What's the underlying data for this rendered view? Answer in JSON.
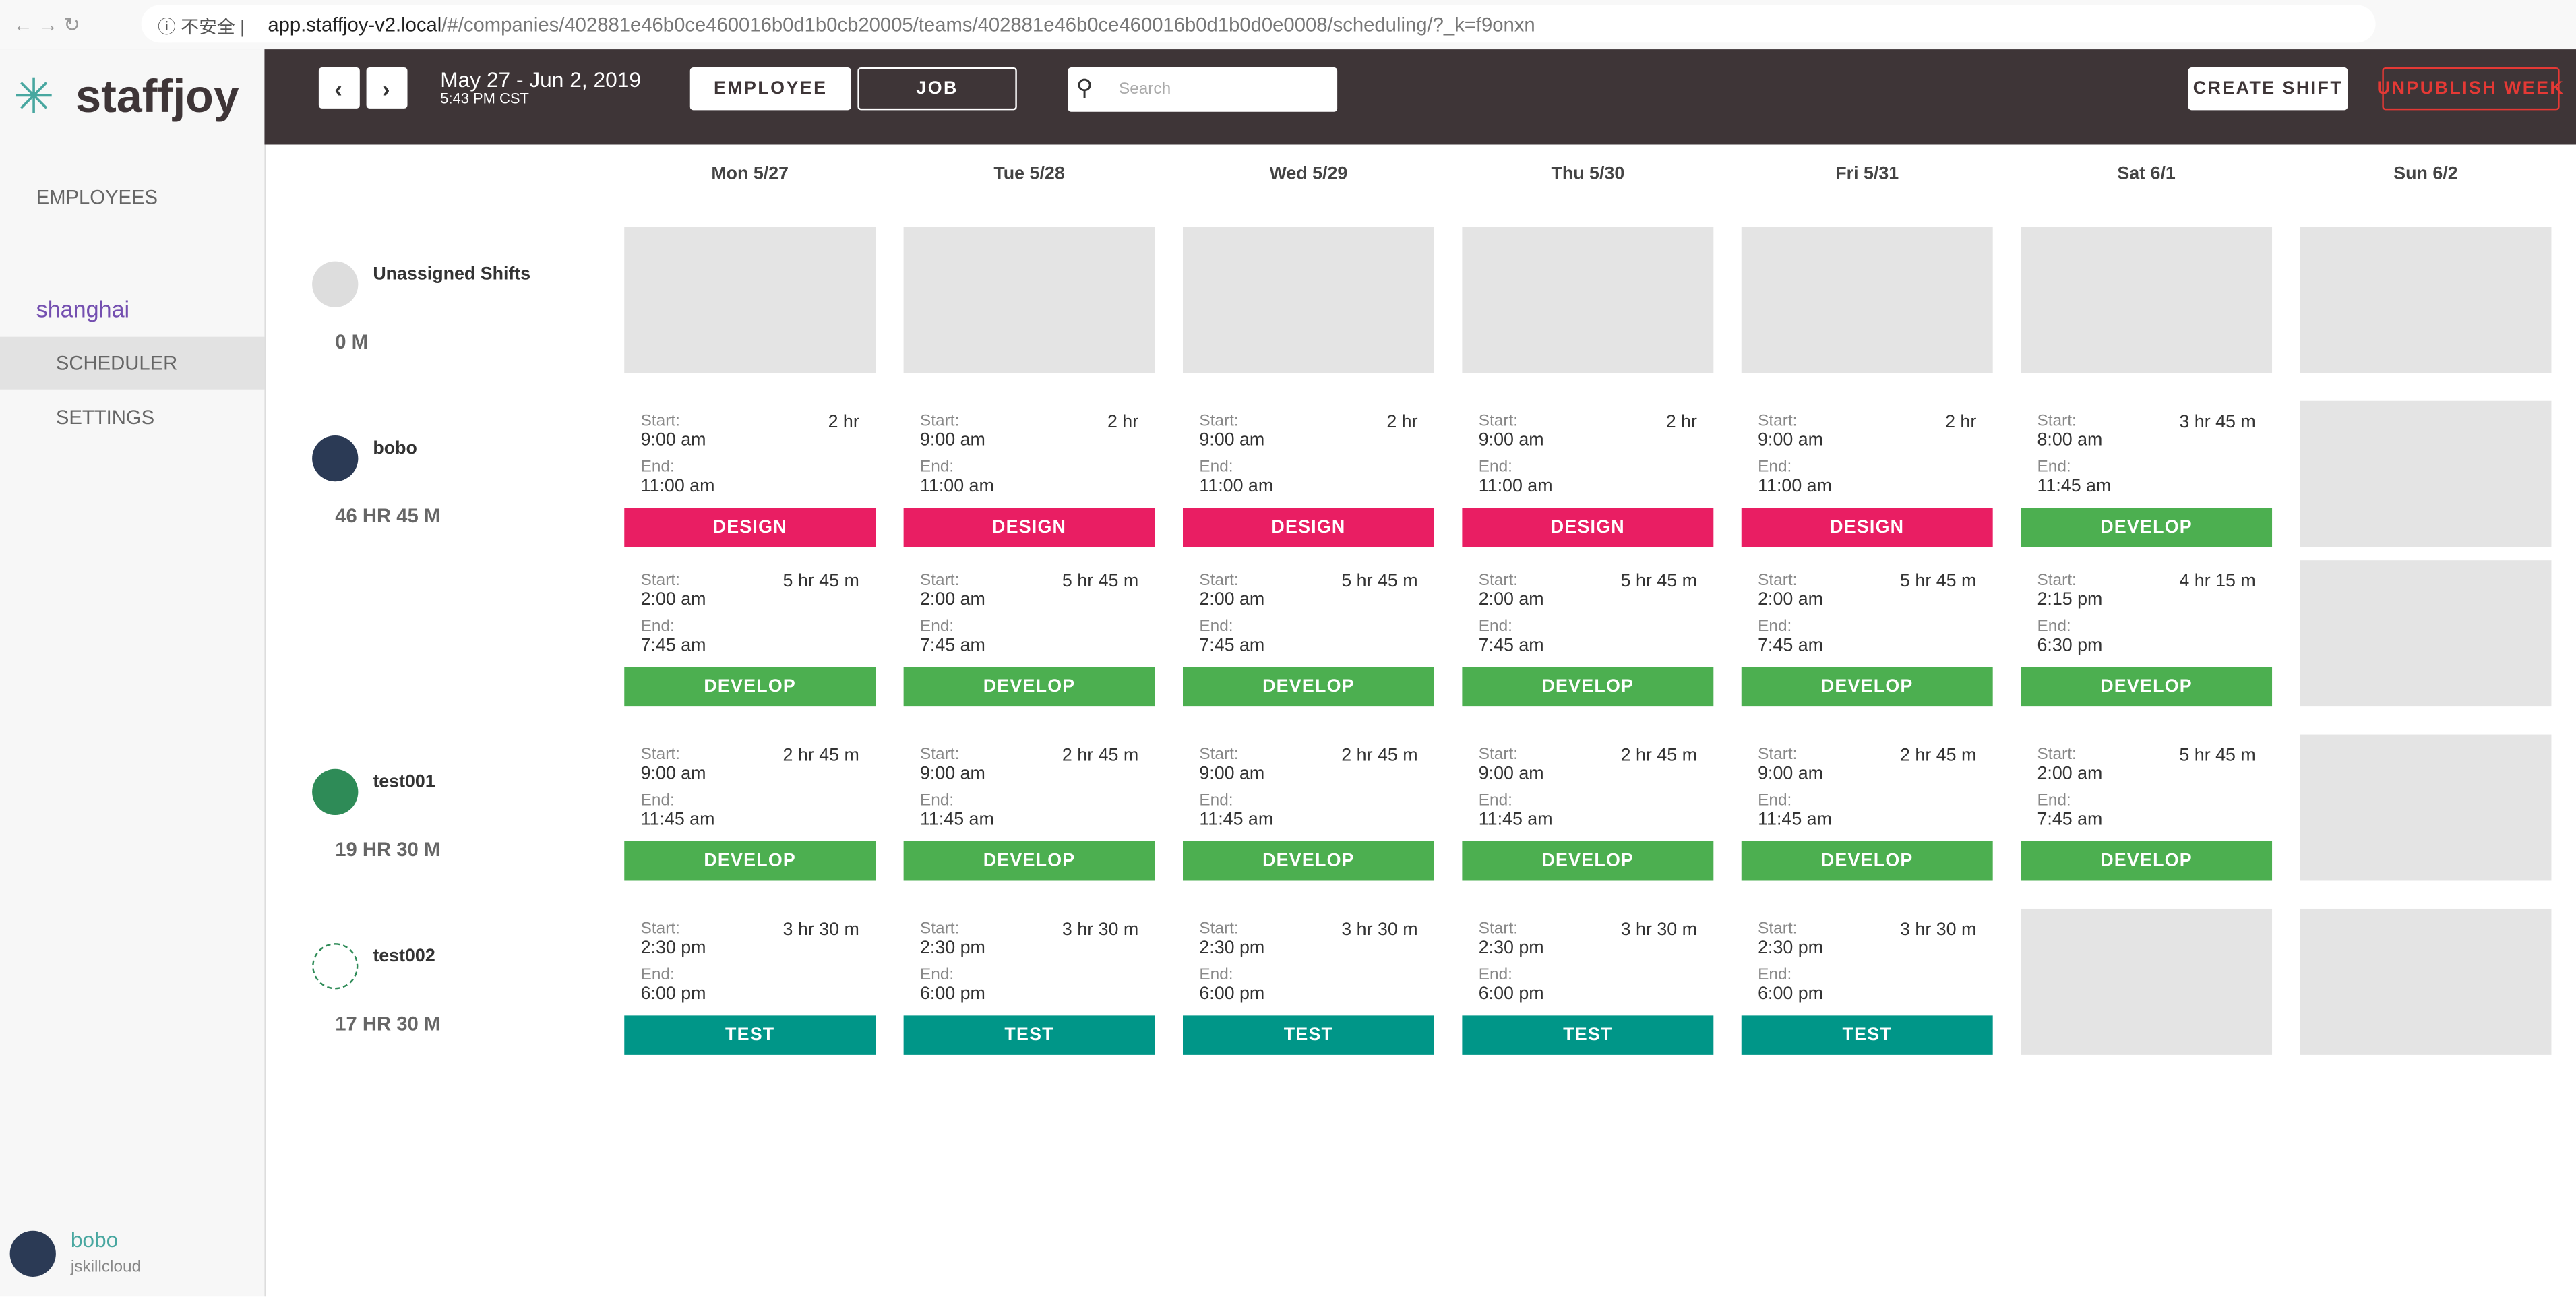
{
  "browser": {
    "insecure": "不安全",
    "url_host": "app.staffjoy-v2.local",
    "url_path": "/#/companies/402881e46b0ce460016b0d1b0cb20005/teams/402881e46b0ce460016b0d1b0d0e0008/scheduling/?_k=f9onxn"
  },
  "sidebar": {
    "logo": "staffjoy",
    "nav": [
      "EMPLOYEES"
    ],
    "team": "shanghai",
    "team_nav": [
      "SCHEDULER",
      "SETTINGS"
    ],
    "user": {
      "name": "bobo",
      "org": "jskillcloud"
    }
  },
  "topbar": {
    "date_range": "May 27 - Jun 2, 2019",
    "time": "5:43 PM CST",
    "view_toggle": [
      "EMPLOYEE",
      "JOB"
    ],
    "search_placeholder": "Search",
    "create_shift": "CREATE SHIFT",
    "unpublish": "UNPUBLISH WEEK"
  },
  "labels": {
    "start": "Start:",
    "end": "End:"
  },
  "job_colors": {
    "DESIGN": "#e91e63",
    "DEVELOP": "#4caf50",
    "TEST": "#009688"
  },
  "days": [
    "Mon 5/27",
    "Tue 5/28",
    "Wed 5/29",
    "Thu 5/30",
    "Fri 5/31",
    "Sat 6/1",
    "Sun 6/2"
  ],
  "rows": [
    {
      "name": "Unassigned Shifts",
      "hours": "0 M",
      "lines": [
        [
          null,
          null,
          null,
          null,
          null,
          null,
          null
        ]
      ]
    },
    {
      "name": "bobo",
      "hours": "46 HR 45 M",
      "lines": [
        [
          {
            "start": "9:00 am",
            "end": "11:00 am",
            "duration": "2 hr",
            "job": "DESIGN"
          },
          {
            "start": "9:00 am",
            "end": "11:00 am",
            "duration": "2 hr",
            "job": "DESIGN"
          },
          {
            "start": "9:00 am",
            "end": "11:00 am",
            "duration": "2 hr",
            "job": "DESIGN"
          },
          {
            "start": "9:00 am",
            "end": "11:00 am",
            "duration": "2 hr",
            "job": "DESIGN"
          },
          {
            "start": "9:00 am",
            "end": "11:00 am",
            "duration": "2 hr",
            "job": "DESIGN"
          },
          {
            "start": "8:00 am",
            "end": "11:45 am",
            "duration": "3 hr 45 m",
            "job": "DEVELOP"
          },
          null
        ],
        [
          {
            "start": "2:00 am",
            "end": "7:45 am",
            "duration": "5 hr 45 m",
            "job": "DEVELOP"
          },
          {
            "start": "2:00 am",
            "end": "7:45 am",
            "duration": "5 hr 45 m",
            "job": "DEVELOP"
          },
          {
            "start": "2:00 am",
            "end": "7:45 am",
            "duration": "5 hr 45 m",
            "job": "DEVELOP"
          },
          {
            "start": "2:00 am",
            "end": "7:45 am",
            "duration": "5 hr 45 m",
            "job": "DEVELOP"
          },
          {
            "start": "2:00 am",
            "end": "7:45 am",
            "duration": "5 hr 45 m",
            "job": "DEVELOP"
          },
          {
            "start": "2:15 pm",
            "end": "6:30 pm",
            "duration": "4 hr 15 m",
            "job": "DEVELOP"
          },
          null
        ]
      ]
    },
    {
      "name": "test001",
      "hours": "19 HR 30 M",
      "lines": [
        [
          {
            "start": "9:00 am",
            "end": "11:45 am",
            "duration": "2 hr 45 m",
            "job": "DEVELOP"
          },
          {
            "start": "9:00 am",
            "end": "11:45 am",
            "duration": "2 hr 45 m",
            "job": "DEVELOP"
          },
          {
            "start": "9:00 am",
            "end": "11:45 am",
            "duration": "2 hr 45 m",
            "job": "DEVELOP"
          },
          {
            "start": "9:00 am",
            "end": "11:45 am",
            "duration": "2 hr 45 m",
            "job": "DEVELOP"
          },
          {
            "start": "9:00 am",
            "end": "11:45 am",
            "duration": "2 hr 45 m",
            "job": "DEVELOP"
          },
          {
            "start": "2:00 am",
            "end": "7:45 am",
            "duration": "5 hr 45 m",
            "job": "DEVELOP"
          },
          null
        ]
      ]
    },
    {
      "name": "test002",
      "hours": "17 HR 30 M",
      "lines": [
        [
          {
            "start": "2:30 pm",
            "end": "6:00 pm",
            "duration": "3 hr 30 m",
            "job": "TEST"
          },
          {
            "start": "2:30 pm",
            "end": "6:00 pm",
            "duration": "3 hr 30 m",
            "job": "TEST"
          },
          {
            "start": "2:30 pm",
            "end": "6:00 pm",
            "duration": "3 hr 30 m",
            "job": "TEST"
          },
          {
            "start": "2:30 pm",
            "end": "6:00 pm",
            "duration": "3 hr 30 m",
            "job": "TEST"
          },
          {
            "start": "2:30 pm",
            "end": "6:00 pm",
            "duration": "3 hr 30 m",
            "job": "TEST"
          },
          null,
          null
        ]
      ]
    }
  ]
}
